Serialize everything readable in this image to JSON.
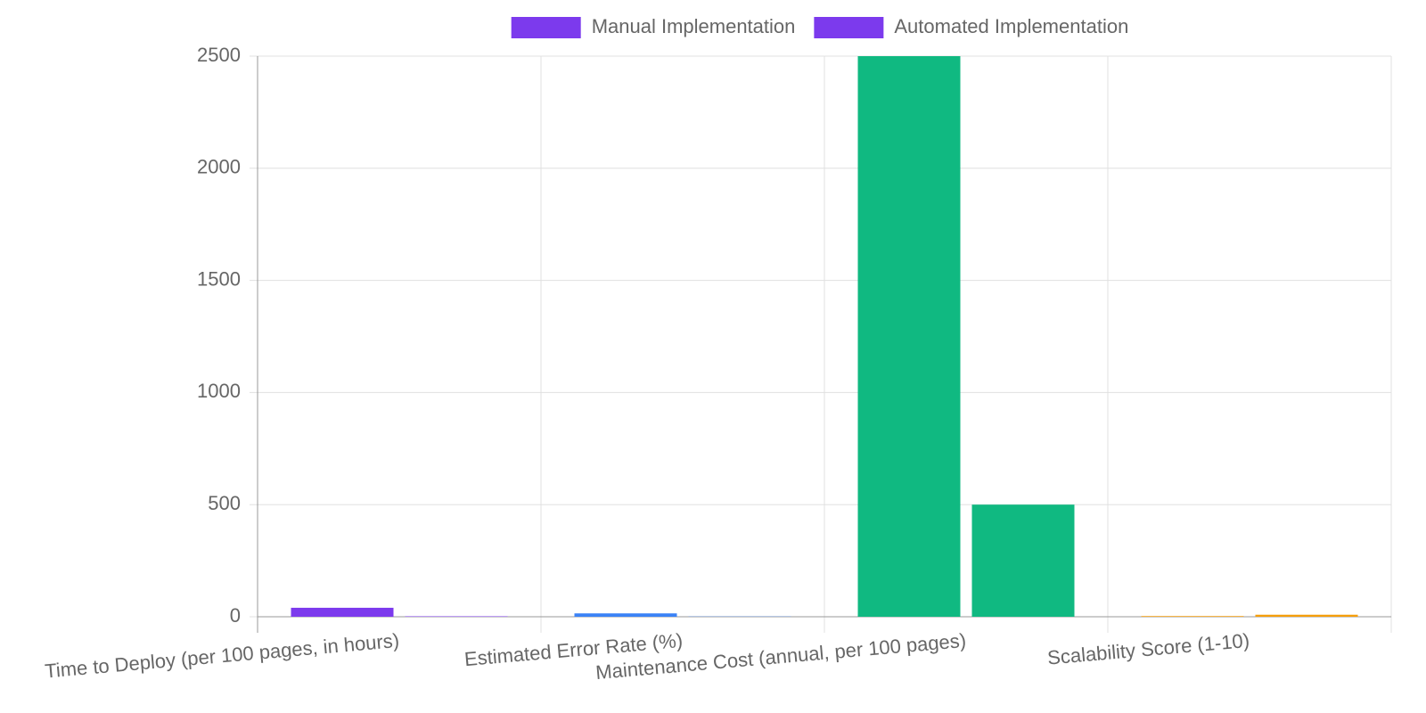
{
  "chart_data": {
    "type": "bar",
    "categories": [
      "Time to Deploy (per 100 pages, in hours)",
      "Estimated Error Rate (%)",
      "Maintenance Cost (annual, per 100 pages)",
      "Scalability Score (1-10)"
    ],
    "series": [
      {
        "name": "Manual Implementation",
        "colors": [
          "#7c3aed",
          "#3b82f6",
          "#10b981",
          "#f59e0b"
        ],
        "values": [
          40,
          15,
          2500,
          3
        ]
      },
      {
        "name": "Automated Implementation",
        "colors": [
          "#7c3aed",
          "#3b82f6",
          "#10b981",
          "#f59e0b"
        ],
        "values": [
          2,
          1,
          500,
          9
        ]
      }
    ],
    "ylim": [
      0,
      2500
    ],
    "yticks": [
      0,
      500,
      1000,
      1500,
      2000,
      2500
    ],
    "grid": true
  }
}
